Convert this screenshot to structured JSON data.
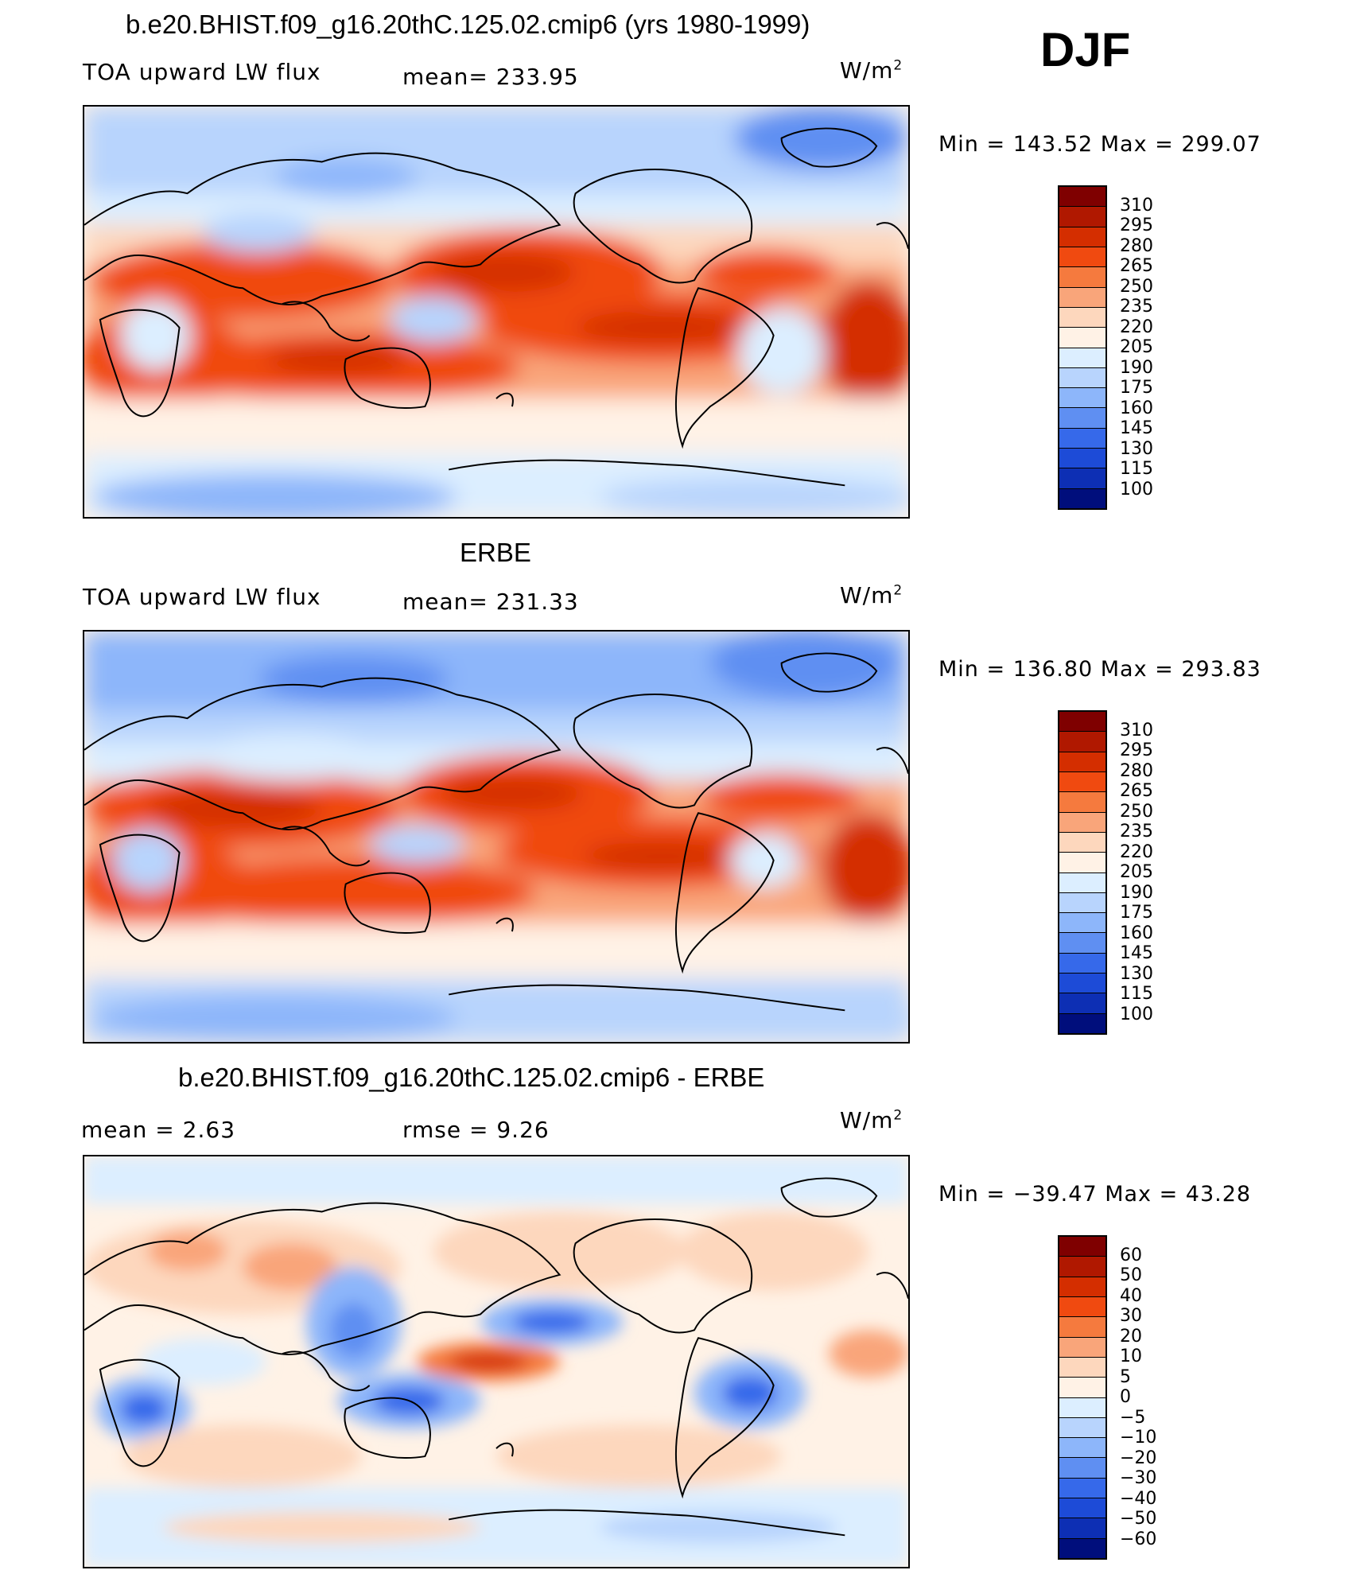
{
  "header": {
    "season": "DJF"
  },
  "panels": [
    {
      "title": "b.e20.BHIST.f09_g16.20thC.125.02.cmip6 (yrs 1980-1999)",
      "left_label": "TOA upward LW flux",
      "center_label": "mean= 233.95",
      "units_base": "W/m",
      "units_exp": "2",
      "min_max": "Min  =  143.52  Max  =  299.07",
      "colorbar_labels": [
        "310",
        "295",
        "280",
        "265",
        "250",
        "235",
        "220",
        "205",
        "190",
        "175",
        "160",
        "145",
        "130",
        "115",
        "100"
      ],
      "colorbar_colors": [
        "#7f0000",
        "#b01800",
        "#d42e00",
        "#f04a10",
        "#f57a3e",
        "#f9a57a",
        "#fdd7bd",
        "#fff2e6",
        "#dceeff",
        "#b8d4fd",
        "#8db6fa",
        "#5f8ff2",
        "#3669ea",
        "#1d4bd7",
        "#0d2fb4",
        "#000e7c"
      ]
    },
    {
      "title": "ERBE",
      "left_label": "TOA upward LW flux",
      "center_label": "mean= 231.33",
      "units_base": "W/m",
      "units_exp": "2",
      "min_max": "Min  =  136.80  Max  =  293.83",
      "colorbar_labels": [
        "310",
        "295",
        "280",
        "265",
        "250",
        "235",
        "220",
        "205",
        "190",
        "175",
        "160",
        "145",
        "130",
        "115",
        "100"
      ],
      "colorbar_colors": [
        "#7f0000",
        "#b01800",
        "#d42e00",
        "#f04a10",
        "#f57a3e",
        "#f9a57a",
        "#fdd7bd",
        "#fff2e6",
        "#dceeff",
        "#b8d4fd",
        "#8db6fa",
        "#5f8ff2",
        "#3669ea",
        "#1d4bd7",
        "#0d2fb4",
        "#000e7c"
      ]
    },
    {
      "title": "b.e20.BHIST.f09_g16.20thC.125.02.cmip6 - ERBE",
      "left_label": "mean =     2.63",
      "center_label": "rmse =     9.26",
      "units_base": "W/m",
      "units_exp": "2",
      "min_max": "Min  =  −39.47  Max  =     43.28",
      "colorbar_labels": [
        "60",
        "50",
        "40",
        "30",
        "20",
        "10",
        "5",
        "0",
        "−5",
        "−10",
        "−20",
        "−30",
        "−40",
        "−50",
        "−60"
      ],
      "colorbar_colors": [
        "#7f0000",
        "#b01800",
        "#d42e00",
        "#f04a10",
        "#f57a3e",
        "#f9a57a",
        "#fdd7bd",
        "#fff2e6",
        "#dceeff",
        "#b8d4fd",
        "#8db6fa",
        "#5f8ff2",
        "#3669ea",
        "#1d4bd7",
        "#0d2fb4",
        "#000e7c"
      ]
    }
  ]
}
